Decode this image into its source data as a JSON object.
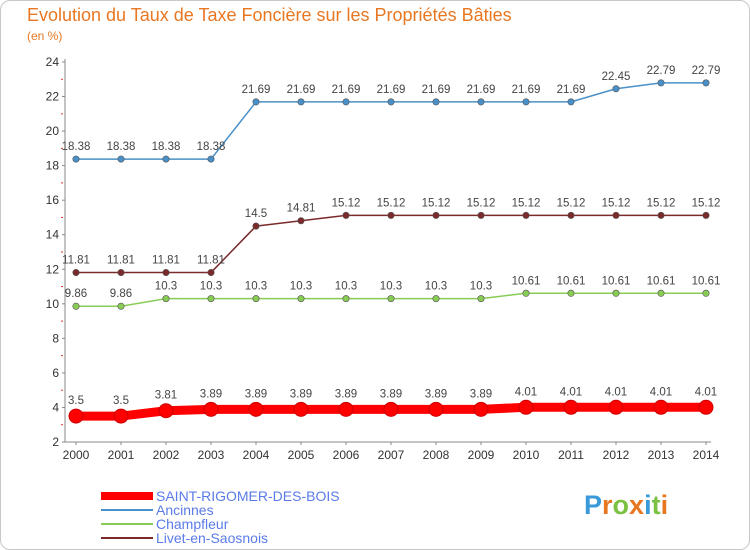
{
  "title": "Evolution du Taux de Taxe Foncière sur les Propriétés Bâties",
  "unit_label": "(en %)",
  "logo": {
    "letters": [
      "P",
      "r",
      "o",
      "x",
      "i",
      "t",
      "i"
    ],
    "colors": [
      "#3a9ad9",
      "#e87722",
      "#7cc242",
      "#e87722",
      "#3a9ad9",
      "#7cc242",
      "#e87722"
    ]
  },
  "chart_data": {
    "type": "line",
    "title": "Evolution du Taux de Taxe Foncière sur les Propriétés Bâties",
    "ylabel": "(en %)",
    "xlabel": "",
    "ylim": [
      2,
      24
    ],
    "yticks": [
      2,
      4,
      6,
      8,
      10,
      12,
      14,
      16,
      18,
      20,
      22,
      24
    ],
    "x": [
      "2000",
      "2001",
      "2002",
      "2003",
      "2004",
      "2005",
      "2006",
      "2007",
      "2008",
      "2009",
      "2010",
      "2011",
      "2012",
      "2013",
      "2014"
    ],
    "series": [
      {
        "name": "SAINT-RIGOMER-DES-BOIS",
        "color": "#ff0000",
        "values": [
          3.5,
          3.5,
          3.81,
          3.89,
          3.89,
          3.89,
          3.89,
          3.89,
          3.89,
          3.89,
          4.01,
          4.01,
          4.01,
          4.01,
          4.01
        ],
        "labels": [
          "3.5",
          "3.5",
          "3.81",
          "3.89",
          "3.89",
          "3.89",
          "3.89",
          "3.89",
          "3.89",
          "3.89",
          "4.01",
          "4.01",
          "4.01",
          "4.01",
          "4.01"
        ]
      },
      {
        "name": "Ancinnes",
        "color": "#4a90c8",
        "values": [
          18.38,
          18.38,
          18.38,
          18.38,
          21.69,
          21.69,
          21.69,
          21.69,
          21.69,
          21.69,
          21.69,
          21.69,
          22.45,
          22.79,
          22.79
        ],
        "labels": [
          "18.38",
          "18.38",
          "18.38",
          "18.38",
          "21.69",
          "21.69",
          "21.69",
          "21.69",
          "21.69",
          "21.69",
          "21.69",
          "21.69",
          "22.45",
          "22.79",
          "22.79"
        ]
      },
      {
        "name": "Champfleur",
        "color": "#88cc55",
        "values": [
          9.86,
          9.86,
          10.3,
          10.3,
          10.3,
          10.3,
          10.3,
          10.3,
          10.3,
          10.3,
          10.61,
          10.61,
          10.61,
          10.61,
          10.61
        ],
        "labels": [
          "9.86",
          "9.86",
          "10.3",
          "10.3",
          "10.3",
          "10.3",
          "10.3",
          "10.3",
          "10.3",
          "10.3",
          "10.61",
          "10.61",
          "10.61",
          "10.61",
          "10.61"
        ]
      },
      {
        "name": "Livet-en-Saosnois",
        "color": "#7a2a2a",
        "values": [
          11.81,
          11.81,
          11.81,
          11.81,
          14.5,
          14.81,
          15.12,
          15.12,
          15.12,
          15.12,
          15.12,
          15.12,
          15.12,
          15.12,
          15.12
        ],
        "labels": [
          "11.81",
          "11.81",
          "11.81",
          "11.81",
          "14.5",
          "14.81",
          "15.12",
          "15.12",
          "15.12",
          "15.12",
          "15.12",
          "15.12",
          "15.12",
          "15.12",
          "15.12"
        ]
      }
    ],
    "legend_position": "bottom-left",
    "grid": false
  }
}
